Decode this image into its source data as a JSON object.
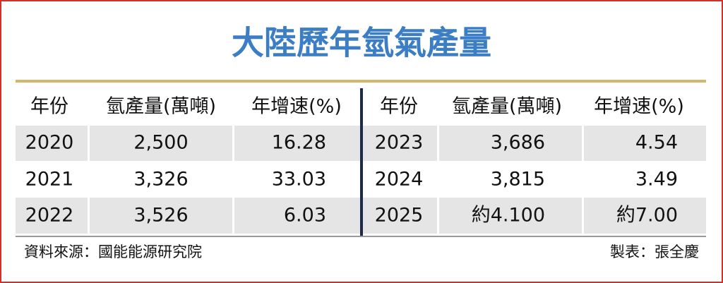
{
  "title": "大陸歷年氫氣產量",
  "table": {
    "header": [
      "年份",
      "氫產量(萬噸)",
      "年增速(%)",
      "年份",
      "氫產量(萬噸)",
      "年增速(%)"
    ],
    "rows": [
      [
        "2020",
        "2,500",
        "16.28",
        "2023",
        "3,686",
        "4.54"
      ],
      [
        "2021",
        "3,326",
        "33.03",
        "2024",
        "3,815",
        "3.49"
      ],
      [
        "2022",
        "3,526",
        "6.03",
        "2025",
        "約4.100",
        "約7.00"
      ]
    ]
  },
  "footer": {
    "source": "資料來源：國能能源研究院",
    "author": "製表：張全慶"
  }
}
